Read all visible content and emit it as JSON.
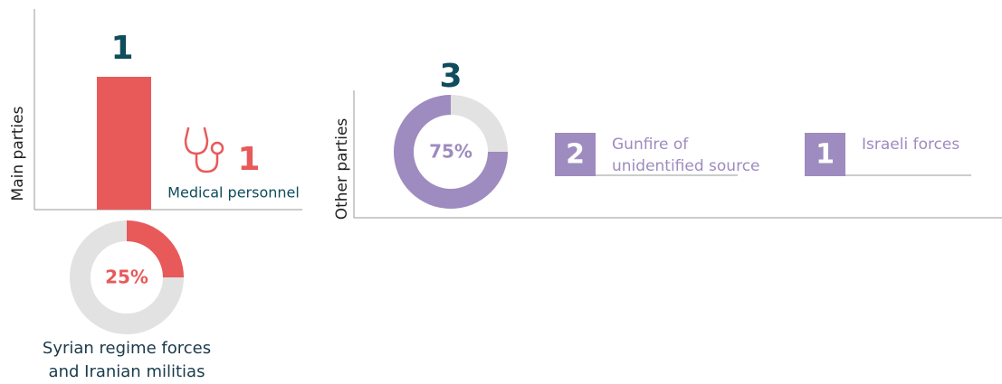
{
  "main": {
    "axis_label": "Main parties",
    "bar": {
      "values": [
        1
      ],
      "color": "#e85a5a"
    },
    "icon_count": {
      "values": [
        1
      ],
      "label": "Medical personnel"
    },
    "donut": {
      "values": [
        25
      ],
      "value_labels": [
        "25%"
      ],
      "color": "#e85a5a",
      "label_lines": [
        "Syrian regime forces",
        "and Iranian militias"
      ]
    }
  },
  "other": {
    "axis_label": "Other parties",
    "total": {
      "values": [
        3
      ]
    },
    "donut": {
      "values": [
        75
      ],
      "value_labels": [
        "75%"
      ],
      "color": "#9e8bbf"
    },
    "items": [
      {
        "value": 2,
        "label_lines": [
          "Gunfire of",
          "unidentified source"
        ]
      },
      {
        "value": 1,
        "label_lines": [
          "Israeli forces"
        ]
      }
    ]
  }
}
